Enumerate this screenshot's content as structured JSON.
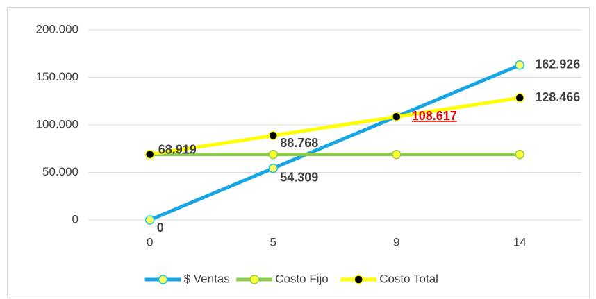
{
  "chart_data": {
    "type": "line",
    "categories": [
      "0",
      "5",
      "9",
      "14"
    ],
    "series": [
      {
        "name": "$ Ventas",
        "color": "#17a6e3",
        "marker_fill": "#ffff66",
        "marker_stroke": "#17c5e3",
        "values": [
          0,
          54309,
          108617,
          162926
        ],
        "value_labels": [
          "0",
          "54.309",
          null,
          "162.926"
        ]
      },
      {
        "name": "Costo Fijo",
        "color": "#8ccc4a",
        "marker_fill": "#ffff33",
        "marker_stroke": "#8ccc4a",
        "values": [
          68919,
          68919,
          68919,
          68919
        ]
      },
      {
        "name": "Costo Total",
        "color": "#ffff00",
        "marker_fill": "#000000",
        "marker_stroke": "#ffff00",
        "values": [
          68919,
          88768,
          108617,
          128466
        ],
        "value_labels": [
          "68.919",
          "88.768",
          "108.617",
          "128.466"
        ],
        "highlight_label": {
          "index": 2,
          "color": "#e00000"
        }
      }
    ],
    "ylim": [
      0,
      200000
    ],
    "yticks": [
      0,
      {
        "value": 50000,
        "label": "50.000"
      },
      {
        "value": 100000,
        "label": "100.000"
      },
      {
        "value": 150000,
        "label": "150.000"
      },
      {
        "value": 200000,
        "label": "200.000"
      }
    ],
    "grid": true,
    "legend": "bottom"
  }
}
